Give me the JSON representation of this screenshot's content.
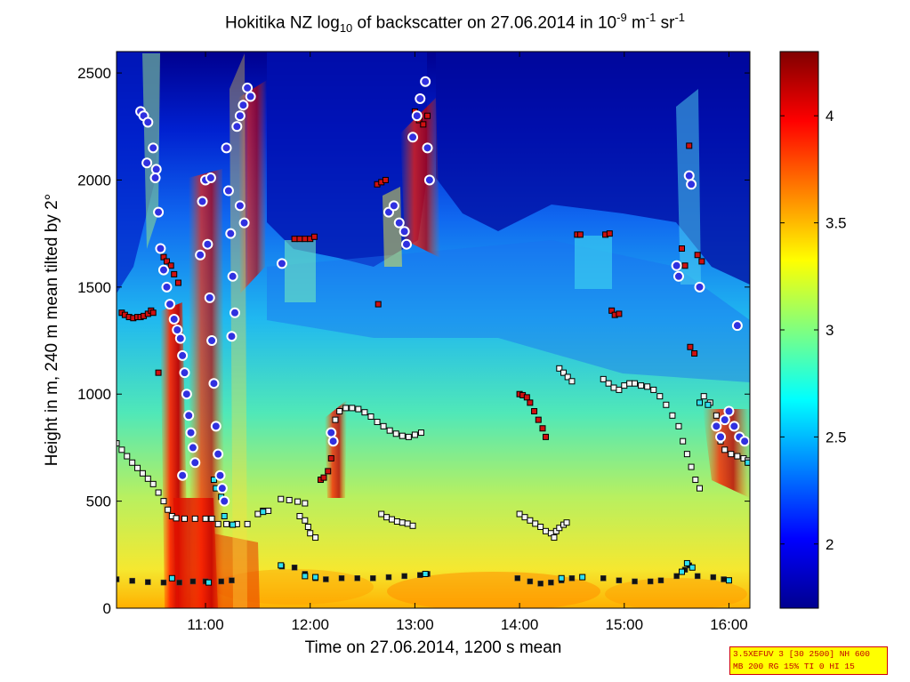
{
  "chart_data": {
    "type": "heatmap",
    "title": {
      "pre": "Hokitika NZ log",
      "sub": "10",
      "mid": " of backscatter on 27.06.2014 in 10",
      "sup1": "-9",
      "mid2": " m",
      "sup2": "-1",
      "mid3": " sr",
      "sup3": "-1"
    },
    "xlabel": "Time on 27.06.2014, 1200 s mean",
    "ylabel": "Height in m, 240 m mean tilted by 2°",
    "x_range_hours": [
      10.15,
      16.2
    ],
    "ylim": [
      0,
      2600
    ],
    "x_ticks": [
      {
        "h": 11,
        "label": "11:00"
      },
      {
        "h": 12,
        "label": "12:00"
      },
      {
        "h": 13,
        "label": "13:00"
      },
      {
        "h": 14,
        "label": "14:00"
      },
      {
        "h": 15,
        "label": "15:00"
      },
      {
        "h": 16,
        "label": "16:00"
      }
    ],
    "y_ticks": [
      0,
      500,
      1000,
      1500,
      2000,
      2500
    ],
    "colorbar": {
      "range": [
        1.7,
        4.3
      ],
      "ticks": [
        2,
        2.5,
        3,
        3.5,
        4
      ],
      "colormap": "jet"
    },
    "markers": {
      "cloud_base_circles": [
        [
          10.38,
          2320
        ],
        [
          10.41,
          2300
        ],
        [
          10.44,
          2080
        ],
        [
          10.5,
          2150
        ],
        [
          10.53,
          2050
        ],
        [
          10.55,
          1850
        ],
        [
          10.57,
          1680
        ],
        [
          10.6,
          1580
        ],
        [
          10.63,
          1500
        ],
        [
          10.66,
          1420
        ],
        [
          10.7,
          1350
        ],
        [
          10.73,
          1300
        ],
        [
          10.76,
          1260
        ],
        [
          10.78,
          1180
        ],
        [
          10.8,
          1100
        ],
        [
          10.82,
          1000
        ],
        [
          10.84,
          900
        ],
        [
          10.86,
          820
        ],
        [
          10.88,
          750
        ],
        [
          10.9,
          680
        ],
        [
          10.78,
          620
        ],
        [
          10.95,
          1650
        ],
        [
          10.97,
          1900
        ],
        [
          11.0,
          2000
        ],
        [
          11.02,
          1700
        ],
        [
          11.04,
          1450
        ],
        [
          11.06,
          1250
        ],
        [
          11.08,
          1050
        ],
        [
          11.1,
          850
        ],
        [
          11.12,
          720
        ],
        [
          11.14,
          620
        ],
        [
          11.16,
          560
        ],
        [
          11.18,
          500
        ],
        [
          11.2,
          2150
        ],
        [
          11.22,
          1950
        ],
        [
          11.24,
          1750
        ],
        [
          11.26,
          1550
        ],
        [
          11.28,
          1380
        ],
        [
          11.25,
          1270
        ],
        [
          11.3,
          2250
        ],
        [
          11.33,
          2300
        ],
        [
          11.36,
          2350
        ],
        [
          11.4,
          2430
        ],
        [
          11.43,
          2390
        ],
        [
          11.33,
          1880
        ],
        [
          11.37,
          1800
        ],
        [
          11.73,
          1610
        ],
        [
          12.2,
          820
        ],
        [
          12.22,
          780
        ],
        [
          12.75,
          1850
        ],
        [
          12.8,
          1880
        ],
        [
          12.85,
          1800
        ],
        [
          12.9,
          1760
        ],
        [
          12.92,
          1700
        ],
        [
          12.98,
          2200
        ],
        [
          13.02,
          2300
        ],
        [
          13.05,
          2380
        ],
        [
          13.1,
          2460
        ],
        [
          13.12,
          2150
        ],
        [
          13.14,
          2000
        ],
        [
          15.62,
          2020
        ],
        [
          15.64,
          1980
        ],
        [
          15.5,
          1600
        ],
        [
          15.52,
          1550
        ],
        [
          15.72,
          1500
        ],
        [
          16.08,
          1320
        ],
        [
          15.88,
          850
        ],
        [
          15.92,
          800
        ],
        [
          15.96,
          880
        ],
        [
          16.0,
          920
        ],
        [
          16.05,
          850
        ],
        [
          16.1,
          800
        ],
        [
          16.15,
          780
        ],
        [
          11.05,
          2010
        ],
        [
          10.52,
          2010
        ],
        [
          10.45,
          2270
        ]
      ],
      "red_squares": [
        [
          10.2,
          1380
        ],
        [
          10.23,
          1370
        ],
        [
          10.27,
          1360
        ],
        [
          10.31,
          1355
        ],
        [
          10.35,
          1360
        ],
        [
          10.38,
          1360
        ],
        [
          10.41,
          1365
        ],
        [
          10.45,
          1375
        ],
        [
          10.48,
          1390
        ],
        [
          10.5,
          1380
        ],
        [
          10.55,
          1100
        ],
        [
          10.6,
          1640
        ],
        [
          10.63,
          1620
        ],
        [
          10.67,
          1600
        ],
        [
          10.7,
          1560
        ],
        [
          10.74,
          1520
        ],
        [
          11.85,
          1725
        ],
        [
          11.9,
          1725
        ],
        [
          11.95,
          1725
        ],
        [
          12.0,
          1725
        ],
        [
          12.04,
          1735
        ],
        [
          12.1,
          600
        ],
        [
          12.13,
          610
        ],
        [
          12.17,
          640
        ],
        [
          12.2,
          700
        ],
        [
          12.64,
          1980
        ],
        [
          12.68,
          1990
        ],
        [
          12.72,
          2000
        ],
        [
          12.65,
          1420
        ],
        [
          13.0,
          2320
        ],
        [
          13.04,
          2280
        ],
        [
          13.08,
          2260
        ],
        [
          13.12,
          2300
        ],
        [
          14.0,
          1000
        ],
        [
          14.03,
          995
        ],
        [
          14.07,
          985
        ],
        [
          14.1,
          960
        ],
        [
          14.14,
          920
        ],
        [
          14.18,
          880
        ],
        [
          14.22,
          840
        ],
        [
          14.25,
          800
        ],
        [
          14.55,
          1745
        ],
        [
          14.58,
          1745
        ],
        [
          14.82,
          1745
        ],
        [
          14.86,
          1750
        ],
        [
          14.88,
          1390
        ],
        [
          14.91,
          1370
        ],
        [
          14.95,
          1375
        ],
        [
          15.55,
          1680
        ],
        [
          15.58,
          1600
        ],
        [
          15.62,
          2160
        ],
        [
          15.63,
          1220
        ],
        [
          15.67,
          1190
        ],
        [
          15.7,
          1650
        ],
        [
          15.74,
          1620
        ]
      ],
      "black_squares": [
        [
          10.15,
          770
        ],
        [
          10.2,
          740
        ],
        [
          10.25,
          710
        ],
        [
          10.3,
          680
        ],
        [
          10.35,
          655
        ],
        [
          10.4,
          630
        ],
        [
          10.45,
          605
        ],
        [
          10.5,
          580
        ],
        [
          10.55,
          540
        ],
        [
          10.6,
          500
        ],
        [
          10.64,
          460
        ],
        [
          10.68,
          430
        ],
        [
          10.72,
          420
        ],
        [
          10.8,
          418
        ],
        [
          10.9,
          418
        ],
        [
          11.0,
          418
        ],
        [
          11.06,
          418
        ],
        [
          11.12,
          393
        ],
        [
          11.2,
          393
        ],
        [
          11.3,
          393
        ],
        [
          11.4,
          393
        ],
        [
          11.5,
          440
        ],
        [
          11.55,
          455
        ],
        [
          11.6,
          455
        ],
        [
          11.72,
          510
        ],
        [
          11.8,
          505
        ],
        [
          11.88,
          498
        ],
        [
          11.95,
          490
        ],
        [
          11.9,
          430
        ],
        [
          11.95,
          410
        ],
        [
          11.98,
          380
        ],
        [
          12.0,
          350
        ],
        [
          12.05,
          330
        ],
        [
          12.24,
          880
        ],
        [
          12.28,
          920
        ],
        [
          12.34,
          935
        ],
        [
          12.4,
          935
        ],
        [
          12.46,
          930
        ],
        [
          12.52,
          915
        ],
        [
          12.58,
          895
        ],
        [
          12.64,
          870
        ],
        [
          12.7,
          850
        ],
        [
          12.76,
          830
        ],
        [
          12.82,
          815
        ],
        [
          12.88,
          805
        ],
        [
          12.94,
          800
        ],
        [
          13.0,
          810
        ],
        [
          13.06,
          820
        ],
        [
          12.68,
          440
        ],
        [
          12.73,
          425
        ],
        [
          12.78,
          415
        ],
        [
          12.83,
          405
        ],
        [
          12.88,
          400
        ],
        [
          12.93,
          395
        ],
        [
          12.98,
          385
        ],
        [
          14.0,
          440
        ],
        [
          14.05,
          425
        ],
        [
          14.1,
          410
        ],
        [
          14.15,
          395
        ],
        [
          14.2,
          380
        ],
        [
          14.25,
          360
        ],
        [
          14.3,
          350
        ],
        [
          14.33,
          330
        ],
        [
          14.35,
          360
        ],
        [
          14.38,
          375
        ],
        [
          14.42,
          390
        ],
        [
          14.45,
          400
        ],
        [
          14.38,
          1120
        ],
        [
          14.42,
          1100
        ],
        [
          14.46,
          1080
        ],
        [
          14.5,
          1060
        ],
        [
          14.8,
          1070
        ],
        [
          14.85,
          1050
        ],
        [
          14.9,
          1030
        ],
        [
          14.95,
          1020
        ],
        [
          15.0,
          1040
        ],
        [
          15.05,
          1050
        ],
        [
          15.1,
          1050
        ],
        [
          15.16,
          1040
        ],
        [
          15.22,
          1035
        ],
        [
          15.28,
          1020
        ],
        [
          15.34,
          990
        ],
        [
          15.4,
          950
        ],
        [
          15.46,
          900
        ],
        [
          15.52,
          850
        ],
        [
          15.56,
          780
        ],
        [
          15.6,
          720
        ],
        [
          15.64,
          660
        ],
        [
          15.68,
          600
        ],
        [
          15.72,
          560
        ],
        [
          15.76,
          990
        ],
        [
          15.82,
          960
        ],
        [
          15.88,
          900
        ],
        [
          15.92,
          780
        ],
        [
          15.96,
          740
        ],
        [
          16.02,
          720
        ],
        [
          16.08,
          710
        ],
        [
          16.14,
          700
        ],
        [
          16.18,
          690
        ],
        [
          16.2,
          680
        ]
      ],
      "surface_layer_squares": [
        [
          10.15,
          135
        ],
        [
          10.3,
          128
        ],
        [
          10.45,
          122
        ],
        [
          10.6,
          120
        ],
        [
          10.75,
          120
        ],
        [
          10.88,
          125
        ],
        [
          11.0,
          125
        ],
        [
          11.15,
          125
        ],
        [
          11.25,
          130
        ],
        [
          11.73,
          195
        ],
        [
          11.85,
          190
        ],
        [
          11.95,
          160
        ],
        [
          12.05,
          140
        ],
        [
          12.15,
          135
        ],
        [
          12.3,
          140
        ],
        [
          12.45,
          140
        ],
        [
          12.6,
          140
        ],
        [
          12.75,
          145
        ],
        [
          12.9,
          150
        ],
        [
          13.05,
          155
        ],
        [
          13.12,
          160
        ],
        [
          13.98,
          140
        ],
        [
          14.1,
          125
        ],
        [
          14.2,
          115
        ],
        [
          14.3,
          120
        ],
        [
          14.4,
          130
        ],
        [
          14.5,
          140
        ],
        [
          14.6,
          145
        ],
        [
          14.8,
          140
        ],
        [
          14.95,
          130
        ],
        [
          15.1,
          125
        ],
        [
          15.25,
          125
        ],
        [
          15.35,
          130
        ],
        [
          15.5,
          150
        ],
        [
          15.58,
          180
        ],
        [
          15.62,
          200
        ],
        [
          15.7,
          150
        ],
        [
          15.85,
          145
        ],
        [
          15.95,
          135
        ],
        [
          16.0,
          130
        ]
      ],
      "cyan_squares": [
        [
          10.68,
          140
        ],
        [
          11.03,
          120
        ],
        [
          11.08,
          600
        ],
        [
          11.1,
          560
        ],
        [
          11.15,
          520
        ],
        [
          11.18,
          430
        ],
        [
          11.26,
          390
        ],
        [
          11.55,
          450
        ],
        [
          11.72,
          200
        ],
        [
          11.95,
          150
        ],
        [
          12.05,
          145
        ],
        [
          13.1,
          160
        ],
        [
          14.4,
          140
        ],
        [
          14.6,
          145
        ],
        [
          15.55,
          170
        ],
        [
          15.6,
          210
        ],
        [
          15.65,
          190
        ],
        [
          15.72,
          960
        ],
        [
          15.8,
          950
        ],
        [
          16.0,
          130
        ],
        [
          16.18,
          680
        ]
      ]
    }
  },
  "info_box": {
    "line1": "3.5XEFUV 3 [30 2500] NH 600",
    "line2": "MB 200 RG 15% TI 0 HI 15"
  }
}
